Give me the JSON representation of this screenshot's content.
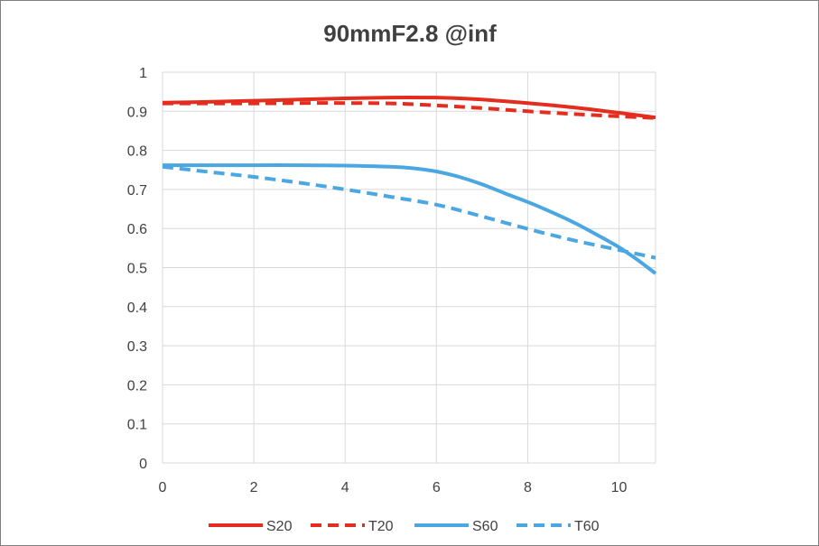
{
  "chart_data": {
    "type": "line",
    "title": "90mmF2.8 @inf",
    "xlabel": "",
    "ylabel": "",
    "xlim": [
      0,
      10.8
    ],
    "ylim": [
      0,
      1
    ],
    "x_ticks": [
      0,
      2,
      4,
      6,
      8,
      10
    ],
    "x_tick_labels": [
      "0",
      "2",
      "4",
      "6",
      "8",
      "10"
    ],
    "y_ticks": [
      0,
      0.1,
      0.2,
      0.3,
      0.4,
      0.5,
      0.6,
      0.7,
      0.8,
      0.9,
      1
    ],
    "y_tick_labels": [
      "0",
      "0.1",
      "0.2",
      "0.3",
      "0.4",
      "0.5",
      "0.6",
      "0.7",
      "0.8",
      "0.9",
      "1"
    ],
    "grid": true,
    "legend_position": "bottom",
    "series": [
      {
        "name": "S20",
        "color": "#e32d1e",
        "style": "solid",
        "x": [
          0,
          1,
          2,
          3,
          4,
          5,
          6,
          6.5,
          7,
          8,
          9,
          10,
          10.8
        ],
        "y": [
          0.922,
          0.924,
          0.927,
          0.93,
          0.933,
          0.935,
          0.935,
          0.933,
          0.93,
          0.921,
          0.91,
          0.896,
          0.884
        ]
      },
      {
        "name": "T20",
        "color": "#e32d1e",
        "style": "dashed",
        "x": [
          0,
          1,
          2,
          3,
          4,
          5,
          6,
          7,
          8,
          9,
          10,
          10.8
        ],
        "y": [
          0.92,
          0.92,
          0.92,
          0.921,
          0.921,
          0.92,
          0.915,
          0.908,
          0.9,
          0.893,
          0.887,
          0.883
        ]
      },
      {
        "name": "S60",
        "color": "#4aa7e2",
        "style": "solid",
        "x": [
          0,
          1,
          2,
          3,
          4,
          5,
          5.5,
          6,
          6.5,
          7,
          7.5,
          8,
          8.5,
          9,
          9.5,
          10,
          10.4,
          10.8
        ],
        "y": [
          0.762,
          0.762,
          0.762,
          0.762,
          0.761,
          0.758,
          0.754,
          0.746,
          0.732,
          0.713,
          0.69,
          0.668,
          0.643,
          0.616,
          0.585,
          0.552,
          0.52,
          0.485
        ]
      },
      {
        "name": "T60",
        "color": "#4aa7e2",
        "style": "dashed",
        "x": [
          0,
          1,
          2,
          3,
          4,
          5,
          6,
          7,
          8,
          9,
          10,
          10.8
        ],
        "y": [
          0.758,
          0.745,
          0.732,
          0.717,
          0.7,
          0.681,
          0.661,
          0.631,
          0.599,
          0.57,
          0.545,
          0.525
        ]
      }
    ]
  }
}
